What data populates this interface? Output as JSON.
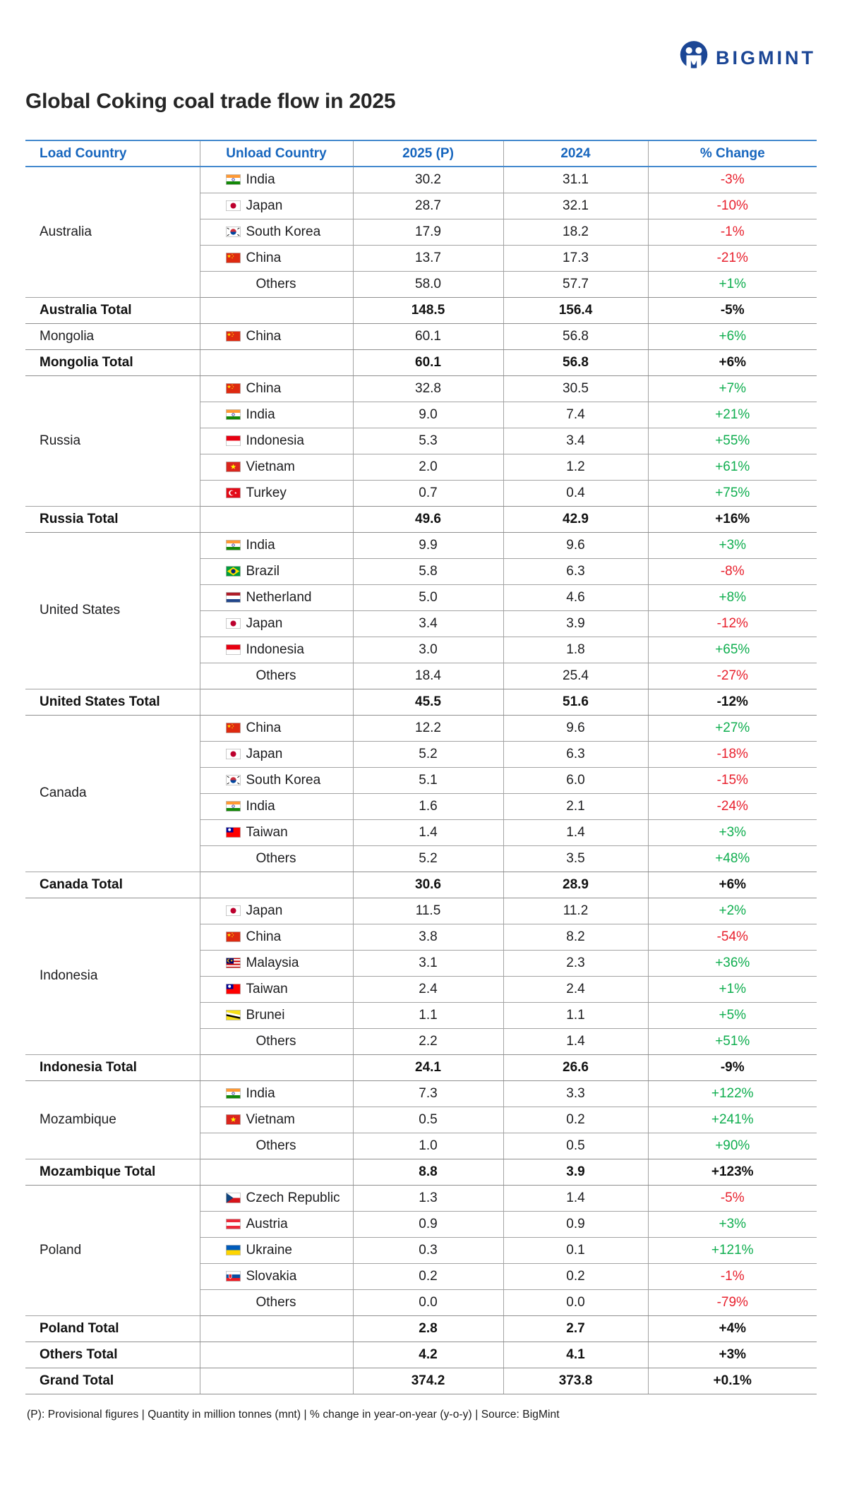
{
  "brand": {
    "name": "BIGMINT",
    "color": "#1b4695"
  },
  "title": "Global Coking coal trade flow in 2025",
  "table": {
    "columns": [
      "Load Country",
      "Unload Country",
      "2025 (P)",
      "2024",
      "% Change"
    ],
    "groups": [
      {
        "load": "Australia",
        "rows": [
          {
            "country": "India",
            "flag": "in",
            "v2025": "30.2",
            "v2024": "31.1",
            "change": "-3%"
          },
          {
            "country": "Japan",
            "flag": "jp",
            "v2025": "28.7",
            "v2024": "32.1",
            "change": "-10%"
          },
          {
            "country": "South Korea",
            "flag": "kr",
            "v2025": "17.9",
            "v2024": "18.2",
            "change": "-1%"
          },
          {
            "country": "China",
            "flag": "cn",
            "v2025": "13.7",
            "v2024": "17.3",
            "change": "-21%"
          },
          {
            "country": "Others",
            "flag": null,
            "v2025": "58.0",
            "v2024": "57.7",
            "change": "+1%"
          }
        ],
        "total": {
          "label": "Australia Total",
          "v2025": "148.5",
          "v2024": "156.4",
          "change": "-5%"
        }
      },
      {
        "load": "Mongolia",
        "rows": [
          {
            "country": "China",
            "flag": "cn",
            "v2025": "60.1",
            "v2024": "56.8",
            "change": "+6%"
          }
        ],
        "total": {
          "label": "Mongolia Total",
          "v2025": "60.1",
          "v2024": "56.8",
          "change": "+6%"
        }
      },
      {
        "load": "Russia",
        "rows": [
          {
            "country": "China",
            "flag": "cn",
            "v2025": "32.8",
            "v2024": "30.5",
            "change": "+7%"
          },
          {
            "country": "India",
            "flag": "in",
            "v2025": "9.0",
            "v2024": "7.4",
            "change": "+21%"
          },
          {
            "country": "Indonesia",
            "flag": "id",
            "v2025": "5.3",
            "v2024": "3.4",
            "change": "+55%"
          },
          {
            "country": "Vietnam",
            "flag": "vn",
            "v2025": "2.0",
            "v2024": "1.2",
            "change": "+61%"
          },
          {
            "country": "Turkey",
            "flag": "tr",
            "v2025": "0.7",
            "v2024": "0.4",
            "change": "+75%"
          }
        ],
        "total": {
          "label": "Russia Total",
          "v2025": "49.6",
          "v2024": "42.9",
          "change": "+16%"
        }
      },
      {
        "load": "United States",
        "rows": [
          {
            "country": "India",
            "flag": "in",
            "v2025": "9.9",
            "v2024": "9.6",
            "change": "+3%"
          },
          {
            "country": "Brazil",
            "flag": "br",
            "v2025": "5.8",
            "v2024": "6.3",
            "change": "-8%"
          },
          {
            "country": "Netherland",
            "flag": "nl",
            "v2025": "5.0",
            "v2024": "4.6",
            "change": "+8%"
          },
          {
            "country": "Japan",
            "flag": "jp",
            "v2025": "3.4",
            "v2024": "3.9",
            "change": "-12%"
          },
          {
            "country": "Indonesia",
            "flag": "id",
            "v2025": "3.0",
            "v2024": "1.8",
            "change": "+65%"
          },
          {
            "country": "Others",
            "flag": null,
            "v2025": "18.4",
            "v2024": "25.4",
            "change": "-27%"
          }
        ],
        "total": {
          "label": "United States Total",
          "v2025": "45.5",
          "v2024": "51.6",
          "change": "-12%"
        }
      },
      {
        "load": "Canada",
        "rows": [
          {
            "country": "China",
            "flag": "cn",
            "v2025": "12.2",
            "v2024": "9.6",
            "change": "+27%"
          },
          {
            "country": "Japan",
            "flag": "jp",
            "v2025": "5.2",
            "v2024": "6.3",
            "change": "-18%"
          },
          {
            "country": "South Korea",
            "flag": "kr",
            "v2025": "5.1",
            "v2024": "6.0",
            "change": "-15%"
          },
          {
            "country": "India",
            "flag": "in",
            "v2025": "1.6",
            "v2024": "2.1",
            "change": "-24%"
          },
          {
            "country": "Taiwan",
            "flag": "tw",
            "v2025": "1.4",
            "v2024": "1.4",
            "change": "+3%"
          },
          {
            "country": "Others",
            "flag": null,
            "v2025": "5.2",
            "v2024": "3.5",
            "change": "+48%"
          }
        ],
        "total": {
          "label": "Canada Total",
          "v2025": "30.6",
          "v2024": "28.9",
          "change": "+6%"
        }
      },
      {
        "load": "Indonesia",
        "rows": [
          {
            "country": "Japan",
            "flag": "jp",
            "v2025": "11.5",
            "v2024": "11.2",
            "change": "+2%"
          },
          {
            "country": "China",
            "flag": "cn",
            "v2025": "3.8",
            "v2024": "8.2",
            "change": "-54%"
          },
          {
            "country": "Malaysia",
            "flag": "my",
            "v2025": "3.1",
            "v2024": "2.3",
            "change": "+36%"
          },
          {
            "country": "Taiwan",
            "flag": "tw",
            "v2025": "2.4",
            "v2024": "2.4",
            "change": "+1%"
          },
          {
            "country": "Brunei",
            "flag": "bn",
            "v2025": "1.1",
            "v2024": "1.1",
            "change": "+5%"
          },
          {
            "country": "Others",
            "flag": null,
            "v2025": "2.2",
            "v2024": "1.4",
            "change": "+51%"
          }
        ],
        "total": {
          "label": "Indonesia Total",
          "v2025": "24.1",
          "v2024": "26.6",
          "change": "-9%"
        }
      },
      {
        "load": "Mozambique",
        "rows": [
          {
            "country": "India",
            "flag": "in",
            "v2025": "7.3",
            "v2024": "3.3",
            "change": "+122%"
          },
          {
            "country": "Vietnam",
            "flag": "vn",
            "v2025": "0.5",
            "v2024": "0.2",
            "change": "+241%"
          },
          {
            "country": "Others",
            "flag": null,
            "v2025": "1.0",
            "v2024": "0.5",
            "change": "+90%"
          }
        ],
        "total": {
          "label": "Mozambique Total",
          "v2025": "8.8",
          "v2024": "3.9",
          "change": "+123%"
        }
      },
      {
        "load": "Poland",
        "rows": [
          {
            "country": "Czech Republic",
            "flag": "cz",
            "v2025": "1.3",
            "v2024": "1.4",
            "change": "-5%"
          },
          {
            "country": "Austria",
            "flag": "at",
            "v2025": "0.9",
            "v2024": "0.9",
            "change": "+3%"
          },
          {
            "country": "Ukraine",
            "flag": "ua",
            "v2025": "0.3",
            "v2024": "0.1",
            "change": "+121%"
          },
          {
            "country": "Slovakia",
            "flag": "sk",
            "v2025": "0.2",
            "v2024": "0.2",
            "change": "-1%"
          },
          {
            "country": "Others",
            "flag": null,
            "v2025": "0.0",
            "v2024": "0.0",
            "change": "-79%"
          }
        ],
        "total": {
          "label": "Poland Total",
          "v2025": "2.8",
          "v2024": "2.7",
          "change": "+4%"
        }
      },
      {
        "load": null,
        "rows": [],
        "total": {
          "label": "Others Total",
          "v2025": "4.2",
          "v2024": "4.1",
          "change": "+3%"
        }
      },
      {
        "load": null,
        "rows": [],
        "total": {
          "label": "Grand Total",
          "v2025": "374.2",
          "v2024": "373.8",
          "change": "+0.1%"
        }
      }
    ]
  },
  "footnote": "(P): Provisional figures  |  Quantity in million tonnes (mnt)  |  % change in year-on-year (y-o-y)  |  Source: BigMint"
}
